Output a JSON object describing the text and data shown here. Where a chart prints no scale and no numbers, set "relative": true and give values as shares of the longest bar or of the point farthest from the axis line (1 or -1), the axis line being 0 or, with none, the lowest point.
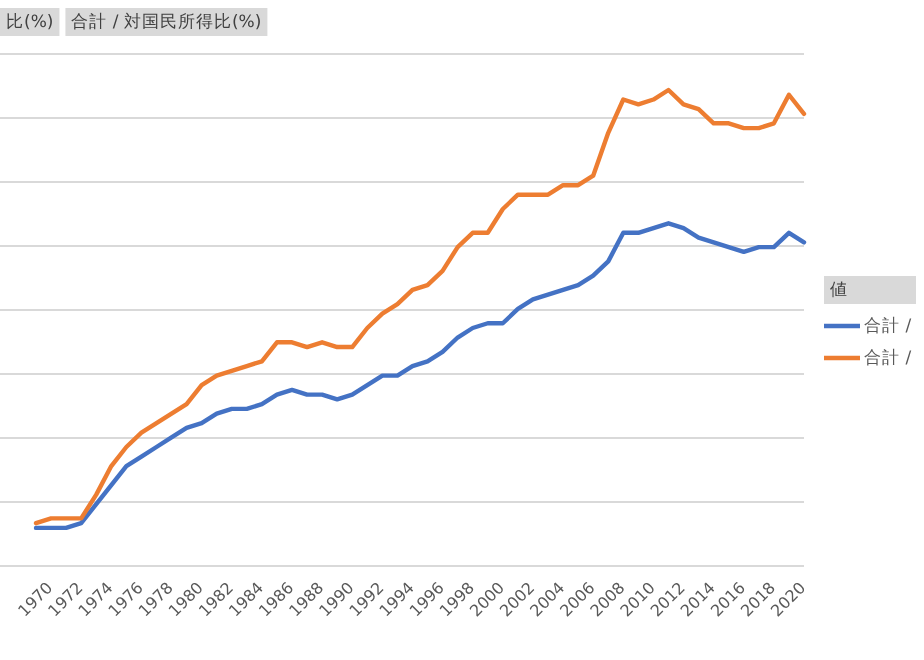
{
  "chart_data": {
    "type": "line",
    "relative": true,
    "annotations": [
      "比(%)",
      "合計 / 対国民所得比(%)"
    ],
    "legend_title": "値",
    "legend": "right",
    "grid": "y",
    "marker": "none",
    "line_style": "solid",
    "categories": [
      "1970",
      null,
      "1972",
      null,
      "1974",
      null,
      "1976",
      null,
      "1978",
      null,
      "1980",
      null,
      "1982",
      null,
      "1984",
      null,
      "1986",
      null,
      "1988",
      null,
      "1990",
      null,
      "1992",
      null,
      "1994",
      null,
      "1996",
      null,
      "1998",
      null,
      "2000",
      null,
      "2002",
      null,
      "2004",
      null,
      "2006",
      null,
      "2008",
      null,
      "2010",
      null,
      "2012",
      null,
      "2014",
      null,
      "2016",
      null,
      "2018",
      null,
      "2020",
      null
    ],
    "series": [
      {
        "name": "合計 /",
        "color": "#4472c4",
        "values": [
          0.08,
          0.08,
          0.08,
          0.09,
          0.13,
          0.17,
          0.21,
          0.23,
          0.25,
          0.27,
          0.29,
          0.3,
          0.32,
          0.33,
          0.33,
          0.34,
          0.36,
          0.37,
          0.36,
          0.36,
          0.35,
          0.36,
          0.38,
          0.4,
          0.4,
          0.42,
          0.43,
          0.45,
          0.48,
          0.5,
          0.51,
          0.51,
          0.54,
          0.56,
          0.57,
          0.58,
          0.59,
          0.61,
          0.64,
          0.7,
          0.7,
          0.71,
          0.72,
          0.71,
          0.69,
          0.68,
          0.67,
          0.66,
          0.67,
          0.67,
          0.7,
          0.68
        ]
      },
      {
        "name": "合計 /",
        "color": "#ed7d31",
        "values": [
          0.09,
          0.1,
          0.1,
          0.1,
          0.15,
          0.21,
          0.25,
          0.28,
          0.3,
          0.32,
          0.34,
          0.38,
          0.4,
          0.41,
          0.42,
          0.43,
          0.47,
          0.47,
          0.46,
          0.47,
          0.46,
          0.46,
          0.5,
          0.53,
          0.55,
          0.58,
          0.59,
          0.62,
          0.67,
          0.7,
          0.7,
          0.75,
          0.78,
          0.78,
          0.78,
          0.8,
          0.8,
          0.82,
          0.91,
          0.98,
          0.97,
          0.98,
          1,
          0.97,
          0.96,
          0.93,
          0.93,
          0.92,
          0.92,
          0.93,
          0.99,
          0.95
        ]
      }
    ]
  }
}
